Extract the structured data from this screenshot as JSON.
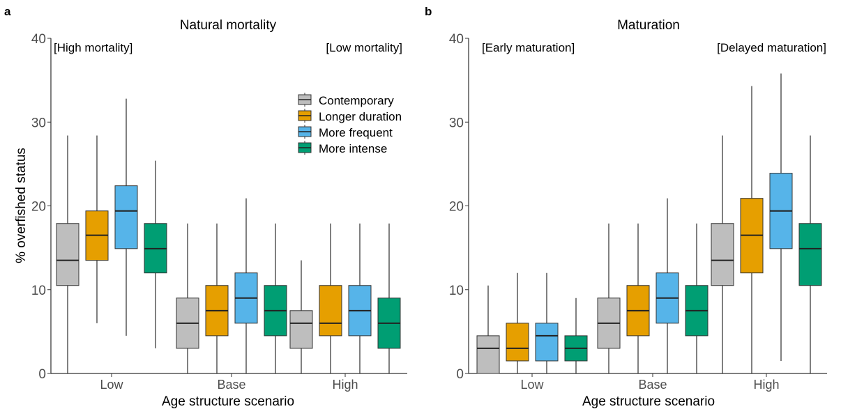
{
  "ylabel": "% overfished status",
  "legend": {
    "placement": "top-right of panel a",
    "entries": [
      {
        "name": "Contemporary",
        "color": "#bebebe"
      },
      {
        "name": "Longer duration",
        "color": "#e69f00"
      },
      {
        "name": "More frequent",
        "color": "#56b4e9"
      },
      {
        "name": "More intense",
        "color": "#009e73"
      }
    ]
  },
  "chart_data": [
    {
      "type": "boxplot",
      "panel_label": "a",
      "title": "Natural mortality",
      "xlabel": "Age structure scenario",
      "ylabel": "% overfished status",
      "ylim": [
        0,
        40
      ],
      "yticks": [
        0,
        10,
        20,
        30,
        40
      ],
      "categories": [
        "Low",
        "Base",
        "High"
      ],
      "annotations": {
        "left": "[High mortality]",
        "right": "[Low mortality]"
      },
      "series": [
        {
          "name": "Contemporary",
          "color": "#bebebe",
          "boxes": [
            {
              "min": 0,
              "q1": 10.5,
              "median": 13.5,
              "q3": 17.9,
              "max": 28.4
            },
            {
              "min": 0,
              "q1": 3,
              "median": 6,
              "q3": 9,
              "max": 17.9
            },
            {
              "min": 0,
              "q1": 3,
              "median": 6,
              "q3": 7.5,
              "max": 13.5
            }
          ]
        },
        {
          "name": "Longer duration",
          "color": "#e69f00",
          "boxes": [
            {
              "min": 6,
              "q1": 13.5,
              "median": 16.5,
              "q3": 19.4,
              "max": 28.4
            },
            {
              "min": 0,
              "q1": 4.5,
              "median": 7.5,
              "q3": 10.5,
              "max": 17.9
            },
            {
              "min": 0,
              "q1": 4.5,
              "median": 6,
              "q3": 10.5,
              "max": 17.9
            }
          ]
        },
        {
          "name": "More frequent",
          "color": "#56b4e9",
          "boxes": [
            {
              "min": 4.5,
              "q1": 14.9,
              "median": 19.4,
              "q3": 22.4,
              "max": 32.8
            },
            {
              "min": 0,
              "q1": 6,
              "median": 9,
              "q3": 12,
              "max": 20.9
            },
            {
              "min": 0,
              "q1": 4.5,
              "median": 7.5,
              "q3": 10.5,
              "max": 17.9
            }
          ]
        },
        {
          "name": "More intense",
          "color": "#009e73",
          "boxes": [
            {
              "min": 3,
              "q1": 12,
              "median": 14.9,
              "q3": 17.9,
              "max": 25.4
            },
            {
              "min": 0,
              "q1": 4.5,
              "median": 7.5,
              "q3": 10.5,
              "max": 17.9
            },
            {
              "min": 0,
              "q1": 3,
              "median": 6,
              "q3": 9,
              "max": 17.9
            }
          ]
        }
      ]
    },
    {
      "type": "boxplot",
      "panel_label": "b",
      "title": "Maturation",
      "xlabel": "Age structure scenario",
      "ylabel": "",
      "ylim": [
        0,
        40
      ],
      "yticks": [
        0,
        10,
        20,
        30,
        40
      ],
      "categories": [
        "Low",
        "Base",
        "High"
      ],
      "annotations": {
        "left": "[Early maturation]",
        "right": "[Delayed maturation]"
      },
      "series": [
        {
          "name": "Contemporary",
          "color": "#bebebe",
          "boxes": [
            {
              "min": 0,
              "q1": 0,
              "median": 3,
              "q3": 4.5,
              "max": 10.5
            },
            {
              "min": 0,
              "q1": 3,
              "median": 6,
              "q3": 9,
              "max": 17.9
            },
            {
              "min": 0,
              "q1": 10.5,
              "median": 13.5,
              "q3": 17.9,
              "max": 28.4
            }
          ]
        },
        {
          "name": "Longer duration",
          "color": "#e69f00",
          "boxes": [
            {
              "min": 0,
              "q1": 1.5,
              "median": 3,
              "q3": 6,
              "max": 12
            },
            {
              "min": 0,
              "q1": 4.5,
              "median": 7.5,
              "q3": 10.5,
              "max": 17.9
            },
            {
              "min": 0,
              "q1": 12,
              "median": 16.5,
              "q3": 20.9,
              "max": 34.3
            }
          ]
        },
        {
          "name": "More frequent",
          "color": "#56b4e9",
          "boxes": [
            {
              "min": 0,
              "q1": 1.5,
              "median": 4.5,
              "q3": 6,
              "max": 12
            },
            {
              "min": 0,
              "q1": 6,
              "median": 9,
              "q3": 12,
              "max": 20.9
            },
            {
              "min": 1.5,
              "q1": 14.9,
              "median": 19.4,
              "q3": 23.9,
              "max": 35.8
            }
          ]
        },
        {
          "name": "More intense",
          "color": "#009e73",
          "boxes": [
            {
              "min": 0,
              "q1": 1.5,
              "median": 3,
              "q3": 4.5,
              "max": 9
            },
            {
              "min": 0,
              "q1": 4.5,
              "median": 7.5,
              "q3": 10.5,
              "max": 17.9
            },
            {
              "min": 0,
              "q1": 10.5,
              "median": 14.9,
              "q3": 17.9,
              "max": 28.4
            }
          ]
        }
      ]
    }
  ]
}
